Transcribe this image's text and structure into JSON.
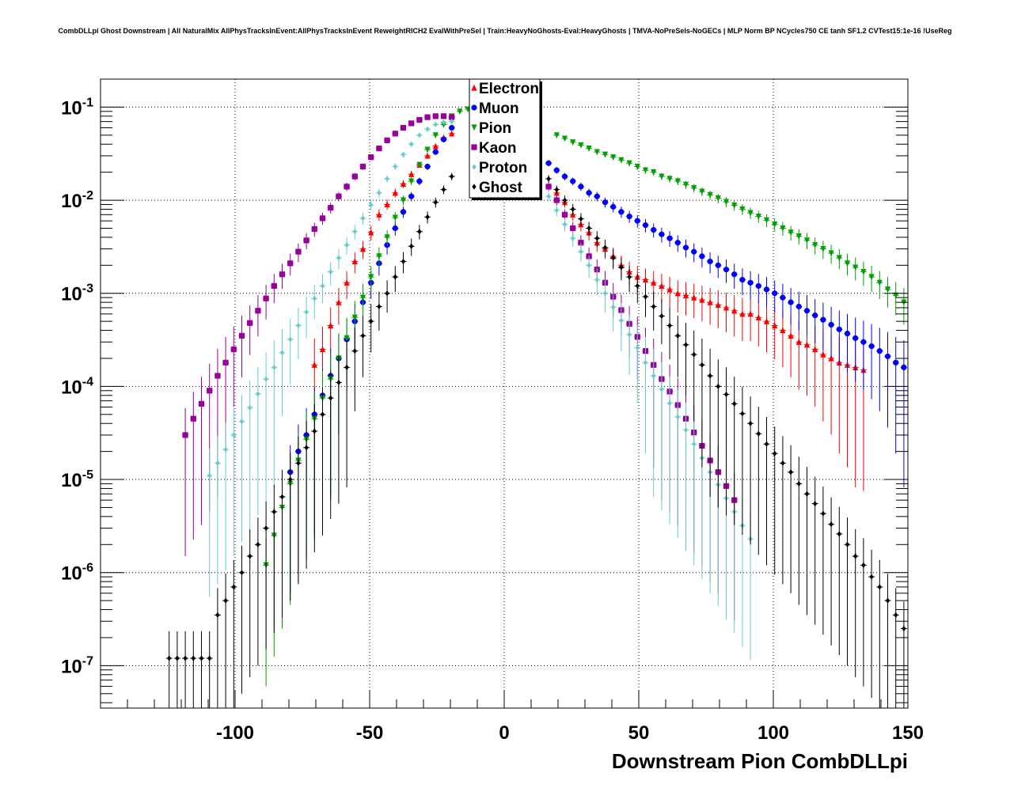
{
  "chart_data": {
    "type": "scatter",
    "title": "CombDLLpi Ghost Downstream | All NaturalMix AllPhysTracksInEvent:AllPhysTracksInEvent ReweightRICH2 EvalWithPreSel | Train:HeavyNoGhosts-Eval:HeavyGhosts | TMVA-NoPreSels-NoGECs | MLP Norm BP NCycles750 CE tanh SF1.2 CVTest15:1e-16 !UseReg",
    "xlabel": "Downstream Pion CombDLLpi",
    "ylabel": "",
    "xlim": [
      -150,
      150
    ],
    "ylim": [
      3.5e-08,
      0.2
    ],
    "y_scale": "log",
    "grid": true,
    "legend_position": "top-center",
    "x_ticks": [
      -100,
      -50,
      0,
      50,
      100,
      150
    ],
    "x_tick_labels": [
      "-100",
      "-50",
      "0",
      "50",
      "100",
      "150"
    ],
    "y_ticks": [
      1e-07,
      1e-06,
      1e-05,
      0.0001,
      0.001,
      0.01,
      0.1
    ],
    "y_tick_labels": [
      {
        "base": "10",
        "exp": "-7"
      },
      {
        "base": "10",
        "exp": "-6"
      },
      {
        "base": "10",
        "exp": "-5"
      },
      {
        "base": "10",
        "exp": "-4"
      },
      {
        "base": "10",
        "exp": "-3"
      },
      {
        "base": "10",
        "exp": "-2"
      },
      {
        "base": "10",
        "exp": "-1"
      }
    ],
    "series": [
      {
        "name": "Electron",
        "color": "#ff0000",
        "marker": "triangle-up",
        "x": [
          -70.5,
          -67.5,
          -64.5,
          -61.5,
          -58.5,
          -55.5,
          -52.5,
          -49.5,
          -46.5,
          -43.5,
          -40.5,
          -37.5,
          -34.5,
          -31.5,
          -28.5,
          -25.5,
          -22.5,
          -19.5,
          19.5,
          22.5,
          25.5,
          28.5,
          31.5,
          34.5,
          37.5,
          40.5,
          43.5,
          46.5,
          49.5,
          52.5,
          55.5,
          58.5,
          61.5,
          64.5,
          67.5,
          70.5,
          73.5,
          76.5,
          79.5,
          82.5,
          85.5,
          88.5,
          91.5,
          94.5,
          97.5,
          100.5,
          103.5,
          106.5,
          109.5,
          112.5,
          115.5,
          118.5,
          121.5,
          124.5,
          127.5,
          130.5,
          133.5
        ],
        "y": [
          0.00017,
          0.00025,
          0.00045,
          0.0008,
          0.0013,
          0.0022,
          0.003,
          0.0045,
          0.007,
          0.009,
          0.012,
          0.015,
          0.019,
          0.024,
          0.03,
          0.038,
          0.047,
          0.052,
          0.012,
          0.0095,
          0.007,
          0.0055,
          0.0045,
          0.0035,
          0.003,
          0.0025,
          0.002,
          0.0017,
          0.0015,
          0.0014,
          0.0013,
          0.0012,
          0.0011,
          0.001,
          0.00095,
          0.0009,
          0.00085,
          0.0008,
          0.00075,
          0.0007,
          0.00065,
          0.0006,
          0.0006,
          0.00055,
          0.0005,
          0.00045,
          0.0004,
          0.00035,
          0.0003,
          0.00028,
          0.00025,
          0.00022,
          0.0002,
          0.00018,
          0.00017,
          0.00016,
          0.00015
        ]
      },
      {
        "name": "Muon",
        "color": "#0000ff",
        "marker": "circle",
        "x": [
          -79.5,
          -76.5,
          -73.5,
          -70.5,
          -67.5,
          -64.5,
          -61.5,
          -58.5,
          -55.5,
          -52.5,
          -49.5,
          -46.5,
          -43.5,
          -40.5,
          -37.5,
          -34.5,
          -31.5,
          -28.5,
          -25.5,
          -22.5,
          -19.5,
          16.5,
          19.5,
          22.5,
          25.5,
          28.5,
          31.5,
          34.5,
          37.5,
          40.5,
          43.5,
          46.5,
          49.5,
          52.5,
          55.5,
          58.5,
          61.5,
          64.5,
          67.5,
          70.5,
          73.5,
          76.5,
          79.5,
          82.5,
          85.5,
          88.5,
          91.5,
          94.5,
          97.5,
          100.5,
          103.5,
          106.5,
          109.5,
          112.5,
          115.5,
          118.5,
          121.5,
          124.5,
          127.5,
          130.5,
          133.5,
          136.5,
          139.5,
          142.5,
          145.5,
          148.5
        ],
        "y": [
          1.2e-05,
          2e-05,
          3e-05,
          5e-05,
          8e-05,
          0.00013,
          0.0002,
          0.00032,
          0.0005,
          0.0008,
          0.0013,
          0.0021,
          0.0033,
          0.005,
          0.0075,
          0.011,
          0.016,
          0.023,
          0.033,
          0.045,
          0.06,
          0.025,
          0.021,
          0.018,
          0.016,
          0.014,
          0.012,
          0.011,
          0.0095,
          0.0085,
          0.0075,
          0.0067,
          0.006,
          0.0054,
          0.0048,
          0.0043,
          0.0039,
          0.0035,
          0.0031,
          0.0028,
          0.0025,
          0.0022,
          0.002,
          0.0018,
          0.0016,
          0.0014,
          0.0013,
          0.0012,
          0.0011,
          0.001,
          0.0009,
          0.0008,
          0.00072,
          0.00065,
          0.00058,
          0.00052,
          0.00046,
          0.00041,
          0.00037,
          0.00033,
          0.0003,
          0.00027,
          0.00024,
          0.00021,
          0.00018,
          0.00016
        ]
      },
      {
        "name": "Pion",
        "color": "#00a000",
        "marker": "triangle-down",
        "x": [
          -88.5,
          -85.5,
          -82.5,
          -79.5,
          -76.5,
          -73.5,
          -70.5,
          -67.5,
          -64.5,
          -61.5,
          -58.5,
          -55.5,
          -52.5,
          -49.5,
          -46.5,
          -43.5,
          -40.5,
          -37.5,
          -34.5,
          -31.5,
          -28.5,
          -25.5,
          -22.5,
          -19.5,
          -16.5,
          -13.5,
          19.5,
          22.5,
          25.5,
          28.5,
          31.5,
          34.5,
          37.5,
          40.5,
          43.5,
          46.5,
          49.5,
          52.5,
          55.5,
          58.5,
          61.5,
          64.5,
          67.5,
          70.5,
          73.5,
          76.5,
          79.5,
          82.5,
          85.5,
          88.5,
          91.5,
          94.5,
          97.5,
          100.5,
          103.5,
          106.5,
          109.5,
          112.5,
          115.5,
          118.5,
          121.5,
          124.5,
          127.5,
          130.5,
          133.5,
          136.5,
          139.5,
          142.5,
          145.5,
          148.5
        ],
        "y": [
          1.2e-06,
          2.5e-06,
          5e-06,
          9e-06,
          1.6e-05,
          2.7e-05,
          4.5e-05,
          7.5e-05,
          0.00012,
          0.0002,
          0.00033,
          0.00055,
          0.0009,
          0.0015,
          0.0025,
          0.004,
          0.0065,
          0.01,
          0.016,
          0.024,
          0.035,
          0.05,
          0.065,
          0.08,
          0.09,
          0.095,
          0.05,
          0.046,
          0.042,
          0.039,
          0.036,
          0.033,
          0.031,
          0.029,
          0.027,
          0.025,
          0.023,
          0.021,
          0.02,
          0.018,
          0.017,
          0.016,
          0.0147,
          0.0135,
          0.0124,
          0.0114,
          0.0105,
          0.0096,
          0.0088,
          0.008,
          0.0073,
          0.0067,
          0.0061,
          0.0055,
          0.005,
          0.0045,
          0.0041,
          0.0037,
          0.0033,
          0.003,
          0.0027,
          0.0024,
          0.0021,
          0.0019,
          0.0017,
          0.0015,
          0.0013,
          0.0011,
          0.00095,
          0.0008
        ]
      },
      {
        "name": "Kaon",
        "color": "#990099",
        "marker": "square",
        "x": [
          -118.5,
          -115.5,
          -112.5,
          -109.5,
          -106.5,
          -103.5,
          -100.5,
          -97.5,
          -94.5,
          -91.5,
          -88.5,
          -85.5,
          -82.5,
          -79.5,
          -76.5,
          -73.5,
          -70.5,
          -67.5,
          -64.5,
          -61.5,
          -58.5,
          -55.5,
          -52.5,
          -49.5,
          -46.5,
          -43.5,
          -40.5,
          -37.5,
          -34.5,
          -31.5,
          -28.5,
          -25.5,
          -22.5,
          -19.5,
          16.5,
          19.5,
          22.5,
          25.5,
          28.5,
          31.5,
          34.5,
          37.5,
          40.5,
          43.5,
          46.5,
          49.5,
          52.5,
          55.5,
          58.5,
          61.5,
          64.5,
          67.5,
          70.5,
          73.5,
          76.5,
          79.5,
          82.5,
          85.5
        ],
        "y": [
          3e-05,
          4.5e-05,
          6.5e-05,
          9e-05,
          0.00013,
          0.00018,
          0.00025,
          0.00035,
          0.00048,
          0.00065,
          0.00088,
          0.0012,
          0.0016,
          0.0021,
          0.0028,
          0.0037,
          0.0049,
          0.0064,
          0.0083,
          0.011,
          0.014,
          0.018,
          0.023,
          0.029,
          0.036,
          0.044,
          0.052,
          0.06,
          0.067,
          0.073,
          0.078,
          0.08,
          0.08,
          0.078,
          0.014,
          0.01,
          0.007,
          0.005,
          0.0035,
          0.0025,
          0.0018,
          0.0013,
          0.00092,
          0.00066,
          0.00047,
          0.00034,
          0.00024,
          0.00017,
          0.00012,
          8.8e-05,
          6.3e-05,
          4.5e-05,
          3.2e-05,
          2.3e-05,
          1.6e-05,
          1.2e-05,
          8.5e-06,
          6e-06
        ]
      },
      {
        "name": "Proton",
        "color": "#66cccc",
        "marker": "diamond",
        "x": [
          -109.5,
          -106.5,
          -103.5,
          -100.5,
          -97.5,
          -94.5,
          -91.5,
          -88.5,
          -85.5,
          -82.5,
          -79.5,
          -76.5,
          -73.5,
          -70.5,
          -67.5,
          -64.5,
          -61.5,
          -58.5,
          -55.5,
          -52.5,
          -49.5,
          -46.5,
          -43.5,
          -40.5,
          -37.5,
          -34.5,
          -31.5,
          -28.5,
          -25.5,
          -22.5,
          -19.5,
          16.5,
          19.5,
          22.5,
          25.5,
          28.5,
          31.5,
          34.5,
          37.5,
          40.5,
          43.5,
          46.5,
          49.5,
          52.5,
          55.5,
          58.5,
          61.5,
          64.5,
          67.5,
          70.5,
          73.5,
          76.5,
          79.5,
          82.5,
          85.5,
          88.5,
          91.5
        ],
        "y": [
          1.1e-05,
          1.5e-05,
          2.1e-05,
          3e-05,
          4.2e-05,
          5.9e-05,
          8.3e-05,
          0.00012,
          0.00016,
          0.00023,
          0.00032,
          0.00045,
          0.00063,
          0.00088,
          0.0012,
          0.0017,
          0.0024,
          0.0033,
          0.0046,
          0.0064,
          0.0089,
          0.012,
          0.017,
          0.023,
          0.031,
          0.04,
          0.05,
          0.058,
          0.065,
          0.069,
          0.07,
          0.011,
          0.0078,
          0.0055,
          0.0039,
          0.0028,
          0.002,
          0.0014,
          0.001,
          0.00071,
          0.00051,
          0.00036,
          0.00026,
          0.00018,
          0.00013,
          9.3e-05,
          6.6e-05,
          4.7e-05,
          3.4e-05,
          2.4e-05,
          1.7e-05,
          1.2e-05,
          8.8e-06,
          6.3e-06,
          4.5e-06,
          3.2e-06,
          2.3e-06
        ]
      },
      {
        "name": "Ghost",
        "color": "#000000",
        "marker": "diamond",
        "x": [
          -124.5,
          -121.5,
          -118.5,
          -115.5,
          -112.5,
          -109.5,
          -106.5,
          -103.5,
          -100.5,
          -97.5,
          -94.5,
          -91.5,
          -88.5,
          -85.5,
          -82.5,
          -79.5,
          -76.5,
          -73.5,
          -70.5,
          -67.5,
          -64.5,
          -61.5,
          -58.5,
          -55.5,
          -52.5,
          -49.5,
          -46.5,
          -43.5,
          -40.5,
          -37.5,
          -34.5,
          -31.5,
          -28.5,
          -25.5,
          -22.5,
          -19.5,
          16.5,
          19.5,
          22.5,
          25.5,
          28.5,
          31.5,
          34.5,
          37.5,
          40.5,
          43.5,
          46.5,
          49.5,
          52.5,
          55.5,
          58.5,
          61.5,
          64.5,
          67.5,
          70.5,
          73.5,
          76.5,
          79.5,
          82.5,
          85.5,
          88.5,
          91.5,
          94.5,
          97.5,
          100.5,
          103.5,
          106.5,
          109.5,
          112.5,
          115.5,
          118.5,
          121.5,
          124.5,
          127.5,
          130.5,
          133.5,
          136.5,
          139.5,
          142.5,
          145.5,
          148.5
        ],
        "y": [
          1.2e-07,
          1.2e-07,
          1.2e-07,
          1.2e-07,
          1.2e-07,
          1.2e-07,
          3.5e-07,
          5e-07,
          7e-07,
          1e-06,
          1.5e-06,
          2e-06,
          3e-06,
          4.5e-06,
          6.5e-06,
          1e-05,
          1.5e-05,
          2.2e-05,
          3.3e-05,
          5e-05,
          7.5e-05,
          0.00011,
          0.00016,
          0.00024,
          0.00035,
          0.0005,
          0.00072,
          0.001,
          0.0015,
          0.0022,
          0.0032,
          0.0046,
          0.0066,
          0.0095,
          0.013,
          0.018,
          0.017,
          0.013,
          0.01,
          0.008,
          0.0063,
          0.005,
          0.0039,
          0.0031,
          0.0024,
          0.0019,
          0.0015,
          0.0012,
          0.00092,
          0.00072,
          0.00057,
          0.00045,
          0.00035,
          0.00028,
          0.00022,
          0.00017,
          0.00013,
          0.0001,
          8.2e-05,
          6.5e-05,
          5.1e-05,
          4e-05,
          3.1e-05,
          2.4e-05,
          1.9e-05,
          1.5e-05,
          1.2e-05,
          9e-06,
          7e-06,
          5.5e-06,
          4.3e-06,
          3.3e-06,
          2.6e-06,
          2e-06,
          1.5e-06,
          1.2e-06,
          9e-07,
          7e-07,
          5e-07,
          3.5e-07,
          2.5e-07
        ]
      }
    ]
  }
}
